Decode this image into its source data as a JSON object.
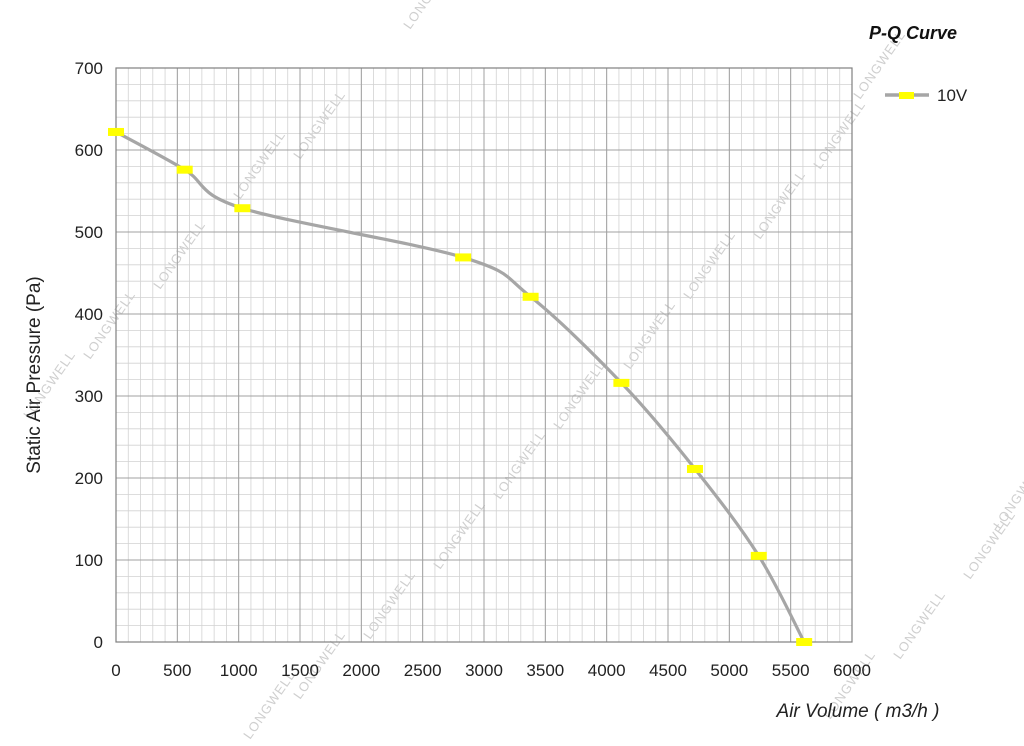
{
  "chart_data": {
    "type": "line",
    "title": "P-Q Curve",
    "xlabel": "Air Volume ( m3/h )",
    "ylabel": "Static Air Pressure  (Pa)",
    "xlim": [
      0,
      6000
    ],
    "ylim": [
      0,
      700
    ],
    "x_ticks": [
      "0",
      "500",
      "1000",
      "1500",
      "2000",
      "2500",
      "3000",
      "3500",
      "4000",
      "4500",
      "5000",
      "5500",
      "6000"
    ],
    "y_ticks": [
      "0",
      "100",
      "200",
      "300",
      "400",
      "500",
      "600",
      "700"
    ],
    "x_minor_step": 100,
    "y_minor_step": 20,
    "grid": true,
    "legend_position": "top-right",
    "series": [
      {
        "name": "10V",
        "line_color": "#a6a6a6",
        "marker_color": "#ffff00",
        "points": [
          {
            "x": 0,
            "y": 622
          },
          {
            "x": 560,
            "y": 576
          },
          {
            "x": 1030,
            "y": 529
          },
          {
            "x": 2830,
            "y": 469
          },
          {
            "x": 3380,
            "y": 421
          },
          {
            "x": 4120,
            "y": 316
          },
          {
            "x": 4720,
            "y": 211
          },
          {
            "x": 5240,
            "y": 105
          },
          {
            "x": 5610,
            "y": 0
          }
        ]
      }
    ],
    "watermark": "LONGWELL"
  }
}
